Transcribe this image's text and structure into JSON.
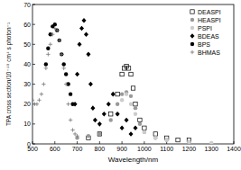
{
  "chart_data": {
    "type": "scatter",
    "x_label": "Wavelength/nm",
    "y_label": "TPA cross section/10⁻⁴⁹ cm⁴ s photon⁻¹",
    "xlim": [
      500,
      1400
    ],
    "xticks": [
      500,
      600,
      700,
      800,
      900,
      1000,
      1100,
      1200,
      1300,
      1400
    ],
    "ylim": [
      0,
      70
    ],
    "yticks": [
      0,
      10,
      20,
      30,
      40,
      50,
      60,
      70
    ],
    "legend": "top-right",
    "series": [
      {
        "name": "DEASPI",
        "color": "#000000",
        "marker": "square-open",
        "x": [
          750,
          800,
          850,
          880,
          900,
          910,
          920,
          930,
          940,
          950,
          960,
          980,
          1000,
          1050,
          1100,
          1150,
          1200
        ],
        "values": [
          3,
          5,
          15,
          25,
          35,
          38,
          39,
          38,
          35,
          28,
          20,
          12,
          8,
          5,
          3,
          2,
          2
        ]
      },
      {
        "name": "HEASPI",
        "color": "#999999",
        "marker": "circle",
        "x": [
          700,
          750,
          800,
          850,
          880,
          900,
          920,
          940,
          960,
          980,
          1000,
          1050,
          1100,
          1200
        ],
        "values": [
          3,
          4,
          5,
          12,
          20,
          25,
          26,
          24,
          18,
          10,
          6,
          3,
          2,
          1
        ]
      },
      {
        "name": "PSPI",
        "color": "#cccccc",
        "marker": "circle",
        "x": [
          880,
          900,
          920,
          940,
          960,
          1000,
          1050,
          1100,
          1200,
          1300
        ],
        "values": [
          15,
          22,
          25,
          20,
          15,
          6,
          3,
          2,
          1,
          0.5
        ]
      },
      {
        "name": "BDEAS",
        "color": "#000000",
        "marker": "diamond",
        "x": [
          690,
          700,
          710,
          720,
          730,
          740,
          750,
          760,
          770,
          780,
          800,
          820,
          840,
          860,
          880,
          900,
          920,
          940,
          960
        ],
        "values": [
          20,
          35,
          50,
          58,
          62,
          55,
          45,
          30,
          18,
          12,
          10,
          15,
          20,
          25,
          15,
          8,
          12,
          5,
          8
        ]
      },
      {
        "name": "BPS",
        "color": "#000000",
        "marker": "circle",
        "x": [
          560,
          570,
          580,
          590,
          600,
          610,
          620,
          630,
          640,
          650,
          660,
          670,
          680
        ],
        "values": [
          40,
          48,
          55,
          59,
          60,
          57,
          52,
          45,
          40,
          35,
          30,
          25,
          20
        ]
      },
      {
        "name": "BHMAS",
        "color": "#777777",
        "marker": "plus",
        "x": [
          500,
          510,
          520,
          530,
          540,
          550,
          560,
          570,
          580,
          590,
          600,
          610,
          620,
          630,
          640,
          650,
          660,
          670,
          680,
          690,
          700
        ],
        "values": [
          22,
          20,
          20,
          22,
          25,
          30,
          38,
          45,
          50,
          55,
          58,
          57,
          52,
          45,
          38,
          30,
          20,
          12,
          7,
          5,
          4
        ]
      }
    ]
  }
}
